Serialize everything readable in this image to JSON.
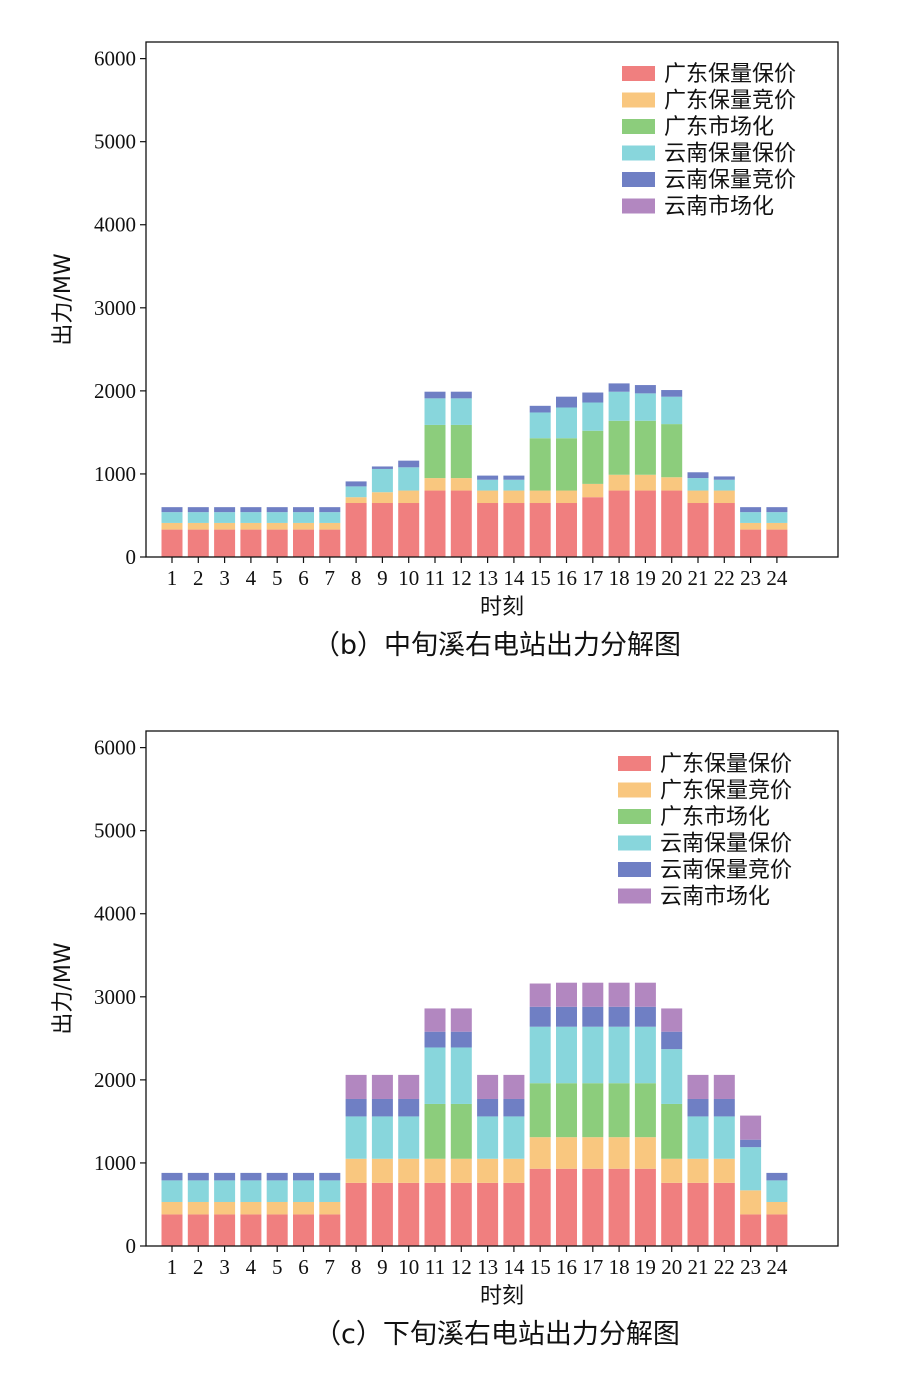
{
  "colors": {
    "gd_guarantee": "#f07f7f",
    "gd_bid": "#f9c77f",
    "gd_market": "#8ccd7c",
    "yn_guarantee": "#88d6dc",
    "yn_bid": "#6f7fc4",
    "yn_market": "#b287c0"
  },
  "chart_data": [
    {
      "type": "bar",
      "stacked": true,
      "caption": "（b）中旬溪右电站出力分解图",
      "xlabel": "时刻",
      "ylabel": "出力/MW",
      "ylim": [
        0,
        6200
      ],
      "yticks": [
        0,
        1000,
        2000,
        3000,
        4000,
        5000,
        6000
      ],
      "legend_position": "top-right",
      "categories": [
        "1",
        "2",
        "3",
        "4",
        "5",
        "6",
        "7",
        "8",
        "9",
        "10",
        "11",
        "12",
        "13",
        "14",
        "15",
        "16",
        "17",
        "18",
        "19",
        "20",
        "21",
        "22",
        "23",
        "24"
      ],
      "series": [
        {
          "name": "广东保量保价",
          "color_key": "gd_guarantee",
          "values": [
            330,
            330,
            330,
            330,
            330,
            330,
            330,
            650,
            650,
            650,
            800,
            800,
            650,
            650,
            650,
            650,
            720,
            800,
            800,
            800,
            650,
            650,
            330,
            330
          ]
        },
        {
          "name": "广东保量竞价",
          "color_key": "gd_bid",
          "values": [
            80,
            80,
            80,
            80,
            80,
            80,
            80,
            70,
            130,
            150,
            150,
            150,
            150,
            150,
            150,
            150,
            160,
            190,
            190,
            160,
            150,
            150,
            80,
            80
          ]
        },
        {
          "name": "广东市场化",
          "color_key": "gd_market",
          "values": [
            0,
            0,
            0,
            0,
            0,
            0,
            0,
            0,
            0,
            0,
            640,
            640,
            0,
            0,
            630,
            630,
            640,
            650,
            650,
            640,
            0,
            0,
            0,
            0
          ]
        },
        {
          "name": "云南保量保价",
          "color_key": "yn_guarantee",
          "values": [
            130,
            130,
            130,
            130,
            130,
            130,
            130,
            130,
            280,
            280,
            320,
            320,
            130,
            130,
            310,
            370,
            340,
            350,
            330,
            330,
            150,
            130,
            130,
            130
          ]
        },
        {
          "name": "云南保量竞价",
          "color_key": "yn_bid",
          "values": [
            60,
            60,
            60,
            60,
            60,
            60,
            60,
            60,
            30,
            80,
            80,
            80,
            50,
            50,
            80,
            130,
            120,
            100,
            100,
            80,
            70,
            40,
            60,
            60
          ]
        },
        {
          "name": "云南市场化",
          "color_key": "yn_market",
          "values": [
            0,
            0,
            0,
            0,
            0,
            0,
            0,
            0,
            0,
            0,
            0,
            0,
            0,
            0,
            0,
            0,
            0,
            0,
            0,
            0,
            0,
            0,
            0,
            0
          ]
        }
      ]
    },
    {
      "type": "bar",
      "stacked": true,
      "caption": "（c）下旬溪右电站出力分解图",
      "xlabel": "时刻",
      "ylabel": "出力/MW",
      "ylim": [
        0,
        6200
      ],
      "yticks": [
        0,
        1000,
        2000,
        3000,
        4000,
        5000,
        6000
      ],
      "legend_position": "top-right",
      "categories": [
        "1",
        "2",
        "3",
        "4",
        "5",
        "6",
        "7",
        "8",
        "9",
        "10",
        "11",
        "12",
        "13",
        "14",
        "15",
        "16",
        "17",
        "18",
        "19",
        "20",
        "21",
        "22",
        "23",
        "24"
      ],
      "series": [
        {
          "name": "广东保量保价",
          "color_key": "gd_guarantee",
          "values": [
            380,
            380,
            380,
            380,
            380,
            380,
            380,
            760,
            760,
            760,
            760,
            760,
            760,
            760,
            930,
            930,
            930,
            930,
            930,
            760,
            760,
            760,
            380,
            380
          ]
        },
        {
          "name": "广东保量竞价",
          "color_key": "gd_bid",
          "values": [
            150,
            150,
            150,
            150,
            150,
            150,
            150,
            290,
            290,
            290,
            290,
            290,
            290,
            290,
            380,
            380,
            380,
            380,
            380,
            290,
            290,
            290,
            290,
            150
          ]
        },
        {
          "name": "广东市场化",
          "color_key": "gd_market",
          "values": [
            0,
            0,
            0,
            0,
            0,
            0,
            0,
            0,
            0,
            0,
            660,
            660,
            0,
            0,
            650,
            650,
            650,
            650,
            650,
            660,
            0,
            0,
            0,
            0
          ]
        },
        {
          "name": "云南保量保价",
          "color_key": "yn_guarantee",
          "values": [
            260,
            260,
            260,
            260,
            260,
            260,
            260,
            510,
            510,
            510,
            680,
            680,
            510,
            510,
            680,
            680,
            680,
            680,
            680,
            660,
            510,
            510,
            520,
            260
          ]
        },
        {
          "name": "云南保量竞价",
          "color_key": "yn_bid",
          "values": [
            90,
            90,
            90,
            90,
            90,
            90,
            90,
            210,
            210,
            210,
            190,
            190,
            210,
            210,
            240,
            240,
            240,
            240,
            240,
            210,
            210,
            210,
            90,
            90
          ]
        },
        {
          "name": "云南市场化",
          "color_key": "yn_market",
          "values": [
            0,
            0,
            0,
            0,
            0,
            0,
            0,
            290,
            290,
            290,
            280,
            280,
            290,
            290,
            280,
            290,
            290,
            290,
            290,
            280,
            290,
            290,
            290,
            0
          ]
        }
      ]
    }
  ]
}
